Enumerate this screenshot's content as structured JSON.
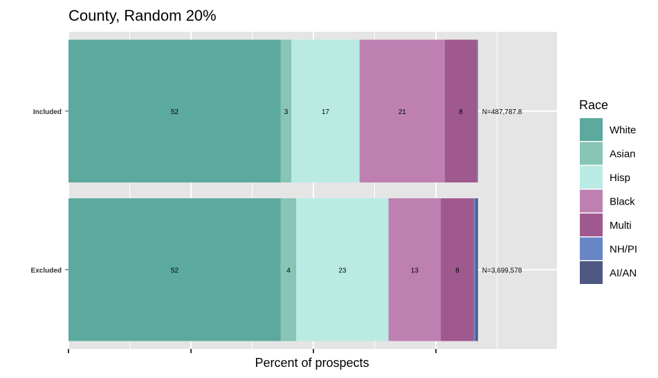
{
  "chart_data": {
    "type": "bar",
    "orientation": "horizontal",
    "stacked": true,
    "title": "County, Random 20%",
    "xlabel": "Percent of prospects",
    "ylabel": "",
    "xlim": [
      0,
      120
    ],
    "grid": true,
    "legend_position": "right",
    "legend_title": "Race",
    "categories": [
      "Included",
      "Excluded"
    ],
    "series": [
      {
        "name": "White",
        "color": "#5CA99E",
        "values": [
          52,
          52
        ],
        "labels": [
          "52",
          "52"
        ]
      },
      {
        "name": "Asian",
        "color": "#88C5B5",
        "values": [
          2.6,
          3.8
        ],
        "labels": [
          "3",
          "4"
        ]
      },
      {
        "name": "Hisp",
        "color": "#B9EBE3",
        "values": [
          16.7,
          22.6
        ],
        "labels": [
          "17",
          "23"
        ]
      },
      {
        "name": "Black",
        "color": "#BD80B1",
        "values": [
          20.9,
          12.8
        ],
        "labels": [
          "21",
          "13"
        ]
      },
      {
        "name": "Multi",
        "color": "#A0598E",
        "values": [
          7.8,
          8.1
        ],
        "labels": [
          "8",
          "8"
        ]
      },
      {
        "name": "NH/PI",
        "color": "#6886C7",
        "values": [
          0.2,
          0.4
        ],
        "labels": [
          "",
          ""
        ]
      },
      {
        "name": "AI/AN",
        "color": "#4E5882",
        "values": [
          0.1,
          0.6
        ],
        "labels": [
          "",
          ""
        ]
      }
    ],
    "totals": [
      "N=487,787.8",
      "N=3,699,578"
    ]
  }
}
